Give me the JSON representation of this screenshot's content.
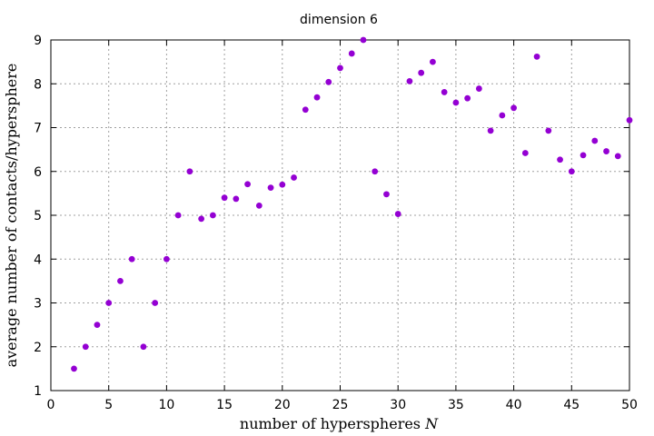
{
  "chart_data": {
    "type": "scatter",
    "title": "dimension 6",
    "xlabel_prefix": "number of hyperspheres ",
    "xlabel_var": "N",
    "ylabel": "average number of contacts/hypersphere",
    "xlim": [
      0,
      50
    ],
    "ylim": [
      1,
      9
    ],
    "xticks": [
      0,
      5,
      10,
      15,
      20,
      25,
      30,
      35,
      40,
      45,
      50
    ],
    "yticks": [
      1,
      2,
      3,
      4,
      5,
      6,
      7,
      8,
      9
    ],
    "grid": true,
    "marker_color": "#9400d3",
    "series": [
      {
        "name": "dimension 6",
        "x": [
          2,
          3,
          4,
          5,
          6,
          7,
          8,
          9,
          10,
          11,
          12,
          13,
          14,
          15,
          16,
          17,
          18,
          19,
          20,
          21,
          22,
          23,
          24,
          25,
          26,
          27,
          28,
          29,
          30,
          31,
          32,
          33,
          34,
          35,
          36,
          37,
          38,
          39,
          40,
          41,
          42,
          43,
          44,
          45,
          46,
          47,
          48,
          49,
          50
        ],
        "y": [
          1.5,
          2.0,
          2.5,
          3.0,
          3.5,
          4.0,
          2.0,
          3.0,
          4.0,
          5.0,
          6.0,
          4.92,
          5.0,
          5.4,
          5.375,
          5.71,
          5.22,
          5.63,
          5.7,
          5.86,
          7.41,
          7.69,
          8.04,
          8.36,
          8.69,
          9.0,
          6.0,
          5.48,
          5.03,
          8.06,
          8.25,
          8.5,
          7.81,
          7.57,
          7.67,
          7.89,
          6.93,
          7.28,
          7.45,
          6.42,
          8.62,
          6.93,
          6.27,
          6.0,
          6.37,
          6.7,
          6.46,
          6.35,
          7.17
        ]
      }
    ]
  }
}
